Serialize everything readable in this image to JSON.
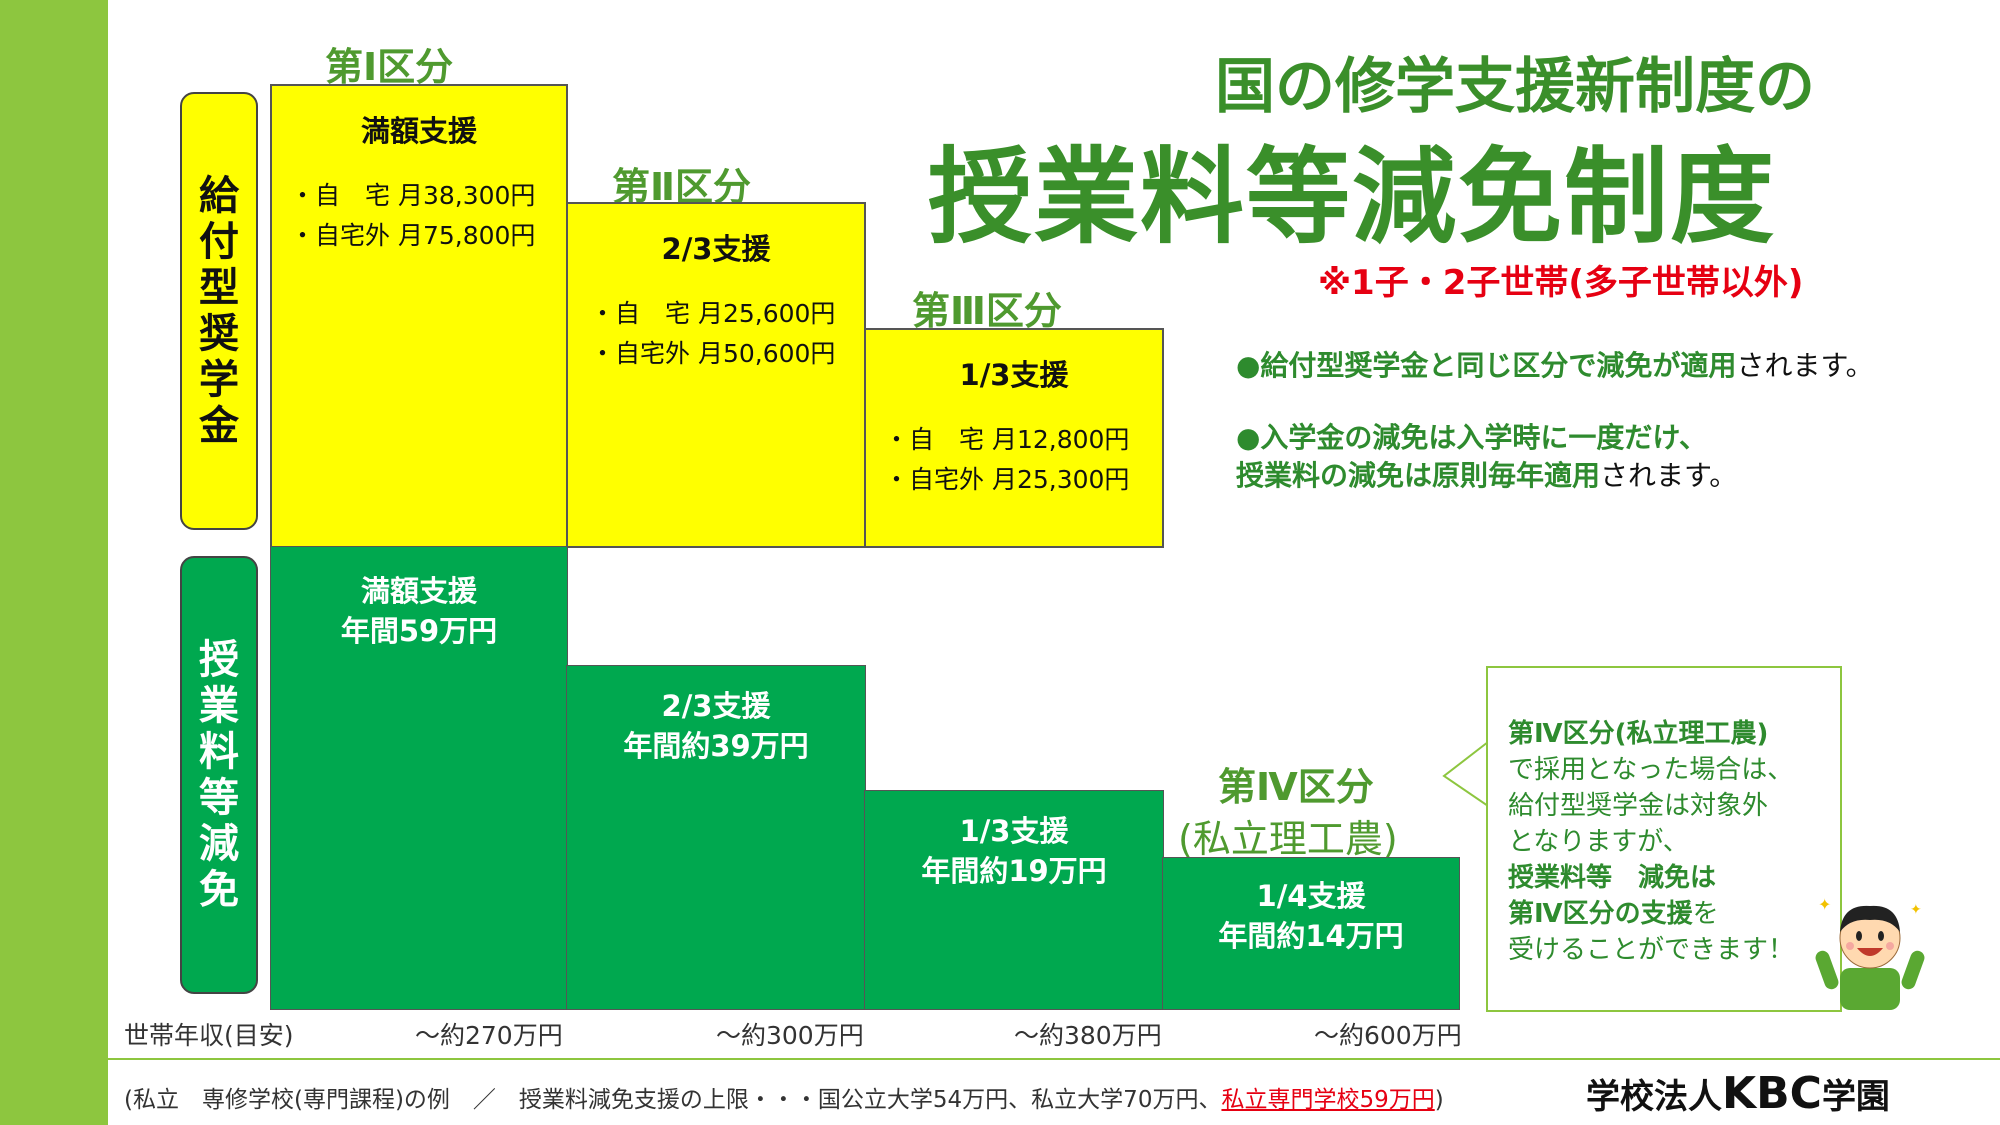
{
  "title": {
    "line1": "国の修学支援新制度の",
    "line2": "授業料等減免制度",
    "note": "※1子・2子世帯(多子世帯以外)"
  },
  "categories": {
    "c1": "第Ⅰ区分",
    "c2": "第Ⅱ区分",
    "c3": "第Ⅲ区分",
    "c4": "第Ⅳ区分",
    "c4_sub": "(私立理工農)"
  },
  "side_labels": {
    "scholarship": [
      "給",
      "付",
      "型",
      "奨",
      "学",
      "金"
    ],
    "tuition": [
      "授",
      "業",
      "料",
      "等",
      "減",
      "免"
    ]
  },
  "scholarship_boxes": [
    {
      "head": "満額支援",
      "home": "・自　宅 月38,300円",
      "away": "・自宅外 月75,800円"
    },
    {
      "head": "2/3支援",
      "home": "・自　宅 月25,600円",
      "away": "・自宅外 月50,600円"
    },
    {
      "head": "1/3支援",
      "home": "・自　宅 月12,800円",
      "away": "・自宅外 月25,300円"
    }
  ],
  "tuition_boxes": [
    {
      "line1": "満額支援",
      "line2": "年間59万円"
    },
    {
      "line1": "2/3支援",
      "line2": "年間約39万円"
    },
    {
      "line1": "1/3支援",
      "line2": "年間約19万円"
    },
    {
      "line1": "1/4支援",
      "line2": "年間約14万円"
    }
  ],
  "income": {
    "label": "世帯年収(目安)",
    "values": [
      "～約270万円",
      "～約300万円",
      "～約380万円",
      "～約600万円"
    ]
  },
  "bullets": {
    "b1_bold": "●給付型奨学金と同じ区分で減免が適用",
    "b1_plain": "されます。",
    "b2_line1": "●入学金の減免は入学時に一度だけ、",
    "b2_line2_bold": "授業料の減免は原則毎年適用",
    "b2_line2_plain": "されます。"
  },
  "callout": {
    "l1": "第Ⅳ区分(私立理工農)",
    "l2": "で採用となった場合は、",
    "l3": "給付型奨学金は対象外",
    "l4": "となりますが、",
    "l5": "授業料等　減免は",
    "l6a": "第Ⅳ区分の支援",
    "l6b": "を",
    "l7": "受けることができます！"
  },
  "footer": {
    "text": "(私立　専修学校(専門課程)の例　／　授業料減免支援の上限・・・国公立大学54万円、私立大学70万円、",
    "red": "私立専門学校59万円",
    "end": ")"
  },
  "logo": {
    "pre": "学校法人",
    "kbc": "KBC",
    "post": "学園"
  },
  "colors": {
    "accent_green": "#8dc63f",
    "box_green": "#00a84f",
    "box_yellow": "#ffff00",
    "title_green": "#2e8b2e",
    "note_red": "#e60012"
  }
}
